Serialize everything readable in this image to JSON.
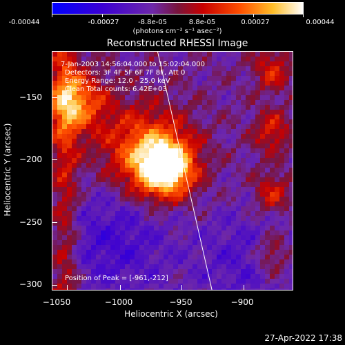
{
  "colorbar": {
    "labels": [
      "-0.00044",
      "-0.00027",
      "-8.8e-05",
      "8.8e-05",
      "0.00027",
      "0.00044"
    ],
    "units": "(photons cm⁻² s⁻¹ asec⁻²)"
  },
  "plot": {
    "title": "Reconstructed RHESSI Image",
    "xlabel": "Heliocentric X (arcsec)",
    "ylabel": "Heliocentric Y (arcsec)",
    "xticks": [
      "−1050",
      "−1000",
      "−950",
      "−900"
    ],
    "yticks": [
      "−150",
      "−200",
      "−250",
      "−300"
    ],
    "x_range": [
      -1055,
      -865
    ],
    "y_range": [
      -307,
      -118
    ],
    "info": {
      "time": "7-Jan-2003 14:56:04.000 to 15:02:04.000",
      "detectors": "Detectors: 3F 4F 5F 6F 7F 8F, Att 0",
      "energy": "Energy Range: 12.0 - 25.0 keV",
      "clean": "Clean    Total counts: 6.42E+03"
    },
    "peak": "Position of Peak = [-961,-212]"
  },
  "footer": {
    "timestamp": "27-Apr-2022 17:38"
  },
  "colors": {
    "background": "#000000",
    "foreground": "#ffffff",
    "limb": "#ffffff"
  }
}
